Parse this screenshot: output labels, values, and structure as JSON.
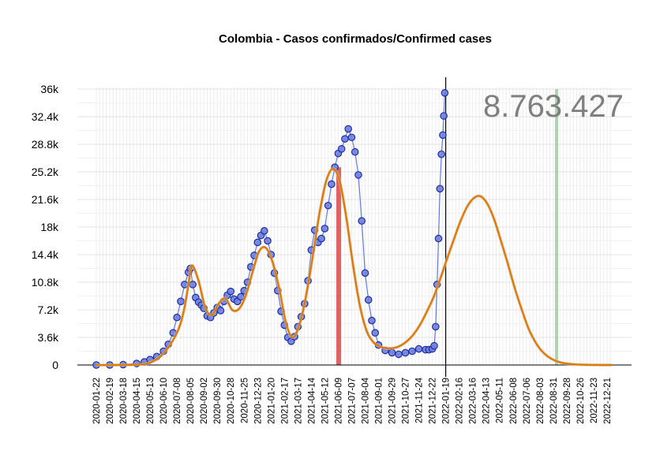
{
  "chart_data": {
    "type": "line",
    "title": "Colombia - Casos confirmados/Confirmed cases",
    "total_label": "8.763.427",
    "xlabel": "",
    "ylabel": "",
    "ylim": [
      0,
      36000
    ],
    "yticks": [
      0,
      3600,
      7200,
      10800,
      14400,
      18000,
      21600,
      25200,
      28800,
      32400,
      36000
    ],
    "ytick_labels": [
      "0",
      "3.6k",
      "7.2k",
      "10.8k",
      "14.4k",
      "18k",
      "21.6k",
      "25.2k",
      "28.8k",
      "32.4k",
      "36k"
    ],
    "xlim": [
      "2020-01-22",
      "2022-12-31"
    ],
    "xtick_labels": [
      "2020-01-22",
      "2020-02-19",
      "2020-03-18",
      "2020-04-15",
      "2020-05-13",
      "2020-06-10",
      "2020-07-08",
      "2020-08-05",
      "2020-09-02",
      "2020-09-30",
      "2020-10-28",
      "2020-11-25",
      "2020-12-23",
      "2021-01-20",
      "2021-02-17",
      "2021-03-17",
      "2021-04-14",
      "2021-05-12",
      "2021-06-09",
      "2021-07-07",
      "2021-08-04",
      "2021-09-01",
      "2021-09-29",
      "2021-10-27",
      "2021-11-24",
      "2021-12-22",
      "2022-01-19",
      "2022-02-16",
      "2022-03-16",
      "2022-04-13",
      "2022-05-11",
      "2022-06-08",
      "2022-07-06",
      "2022-08-03",
      "2022-08-31",
      "2022-09-28",
      "2022-10-26",
      "2022-11-23",
      "2022-12-21"
    ],
    "grid": true,
    "current_date": "2022-01-19",
    "red_marker_date": "2021-06-10",
    "green_marker_date": "2022-09-07",
    "series": [
      {
        "name": "",
        "style": "points-and-line",
        "color": "#1f2f9e",
        "fill": "#6f7fe0",
        "x": [
          "2020-01-22",
          "2020-02-19",
          "2020-03-18",
          "2020-04-15",
          "2020-05-01",
          "2020-05-13",
          "2020-05-27",
          "2020-06-10",
          "2020-06-20",
          "2020-06-30",
          "2020-07-08",
          "2020-07-16",
          "2020-07-24",
          "2020-08-01",
          "2020-08-05",
          "2020-08-10",
          "2020-08-16",
          "2020-08-22",
          "2020-08-28",
          "2020-09-02",
          "2020-09-09",
          "2020-09-16",
          "2020-09-23",
          "2020-09-30",
          "2020-10-07",
          "2020-10-14",
          "2020-10-21",
          "2020-10-28",
          "2020-11-04",
          "2020-11-11",
          "2020-11-18",
          "2020-11-25",
          "2020-12-02",
          "2020-12-09",
          "2020-12-16",
          "2020-12-23",
          "2020-12-30",
          "2021-01-06",
          "2021-01-13",
          "2021-01-20",
          "2021-01-27",
          "2021-02-03",
          "2021-02-10",
          "2021-02-17",
          "2021-02-24",
          "2021-03-03",
          "2021-03-10",
          "2021-03-17",
          "2021-03-24",
          "2021-03-31",
          "2021-04-07",
          "2021-04-14",
          "2021-04-21",
          "2021-04-28",
          "2021-05-05",
          "2021-05-12",
          "2021-05-19",
          "2021-05-26",
          "2021-06-02",
          "2021-06-09",
          "2021-06-16",
          "2021-06-23",
          "2021-06-30",
          "2021-07-07",
          "2021-07-14",
          "2021-07-21",
          "2021-07-28",
          "2021-08-04",
          "2021-08-11",
          "2021-08-18",
          "2021-08-25",
          "2021-09-01",
          "2021-09-15",
          "2021-09-29",
          "2021-10-13",
          "2021-10-27",
          "2021-11-10",
          "2021-11-24",
          "2021-12-08",
          "2021-12-15",
          "2021-12-22",
          "2021-12-26",
          "2021-12-29",
          "2022-01-01",
          "2022-01-04",
          "2022-01-07",
          "2022-01-10",
          "2022-01-13",
          "2022-01-15",
          "2022-01-17"
        ],
        "values": [
          0,
          0,
          50,
          200,
          400,
          700,
          1100,
          1800,
          2700,
          4200,
          6200,
          8300,
          10500,
          12100,
          12600,
          10500,
          8800,
          8200,
          7800,
          7400,
          6400,
          6200,
          6800,
          7500,
          7100,
          8300,
          9100,
          9600,
          8600,
          8300,
          8900,
          9700,
          10800,
          12800,
          14300,
          16000,
          16900,
          17500,
          16200,
          14400,
          12000,
          9700,
          7000,
          5200,
          3600,
          3100,
          3700,
          5000,
          6300,
          8000,
          11000,
          15000,
          17600,
          16000,
          16500,
          17800,
          20800,
          23600,
          25800,
          27600,
          28200,
          29500,
          30800,
          29700,
          27800,
          24800,
          18800,
          12000,
          8500,
          5800,
          4200,
          2600,
          1900,
          1600,
          1400,
          1600,
          1800,
          2100,
          2000,
          2000,
          2100,
          2500,
          5000,
          10500,
          16500,
          23000,
          27500,
          30000,
          32500,
          35500
        ]
      },
      {
        "name": "",
        "style": "smooth-fit",
        "color": "#e07b00",
        "x": [
          "2020-01-22",
          "2020-03-01",
          "2020-04-15",
          "2020-05-13",
          "2020-06-10",
          "2020-07-08",
          "2020-07-22",
          "2020-08-01",
          "2020-08-08",
          "2020-08-22",
          "2020-09-05",
          "2020-09-19",
          "2020-10-03",
          "2020-10-17",
          "2020-10-31",
          "2020-11-14",
          "2020-11-28",
          "2020-12-12",
          "2020-12-26",
          "2021-01-09",
          "2021-01-23",
          "2021-02-06",
          "2021-02-20",
          "2021-03-06",
          "2021-03-20",
          "2021-04-03",
          "2021-04-17",
          "2021-05-01",
          "2021-05-15",
          "2021-05-29",
          "2021-06-12",
          "2021-06-26",
          "2021-07-10",
          "2021-07-24",
          "2021-08-07",
          "2021-08-21",
          "2021-09-04",
          "2021-09-18",
          "2021-10-02",
          "2021-10-16",
          "2021-10-30",
          "2021-11-13",
          "2021-11-27",
          "2021-12-11",
          "2021-12-25",
          "2022-01-08",
          "2022-01-22",
          "2022-02-05",
          "2022-02-19",
          "2022-03-05",
          "2022-03-19",
          "2022-04-02",
          "2022-04-16",
          "2022-04-30",
          "2022-05-14",
          "2022-05-28",
          "2022-06-11",
          "2022-06-25",
          "2022-07-09",
          "2022-07-23",
          "2022-08-06",
          "2022-08-20",
          "2022-09-03",
          "2022-09-17",
          "2022-10-01",
          "2022-10-15",
          "2022-10-29",
          "2022-11-12",
          "2022-11-26",
          "2022-12-10",
          "2022-12-31"
        ],
        "values": [
          0,
          0,
          50,
          300,
          1500,
          4200,
          7000,
          10500,
          13000,
          11000,
          7500,
          6500,
          8000,
          8700,
          7200,
          7300,
          9000,
          12000,
          14800,
          15300,
          13500,
          10000,
          5500,
          3600,
          5200,
          9000,
          14200,
          19800,
          24000,
          25600,
          24000,
          19200,
          13000,
          7800,
          4500,
          3000,
          2400,
          2200,
          2200,
          2500,
          3100,
          4000,
          5300,
          7000,
          8900,
          11300,
          13900,
          16400,
          18800,
          20700,
          21800,
          22000,
          21000,
          19000,
          16200,
          13300,
          10200,
          7500,
          5000,
          3200,
          1900,
          1100,
          600,
          300,
          150,
          80,
          40,
          20,
          10,
          5,
          0
        ]
      }
    ]
  }
}
